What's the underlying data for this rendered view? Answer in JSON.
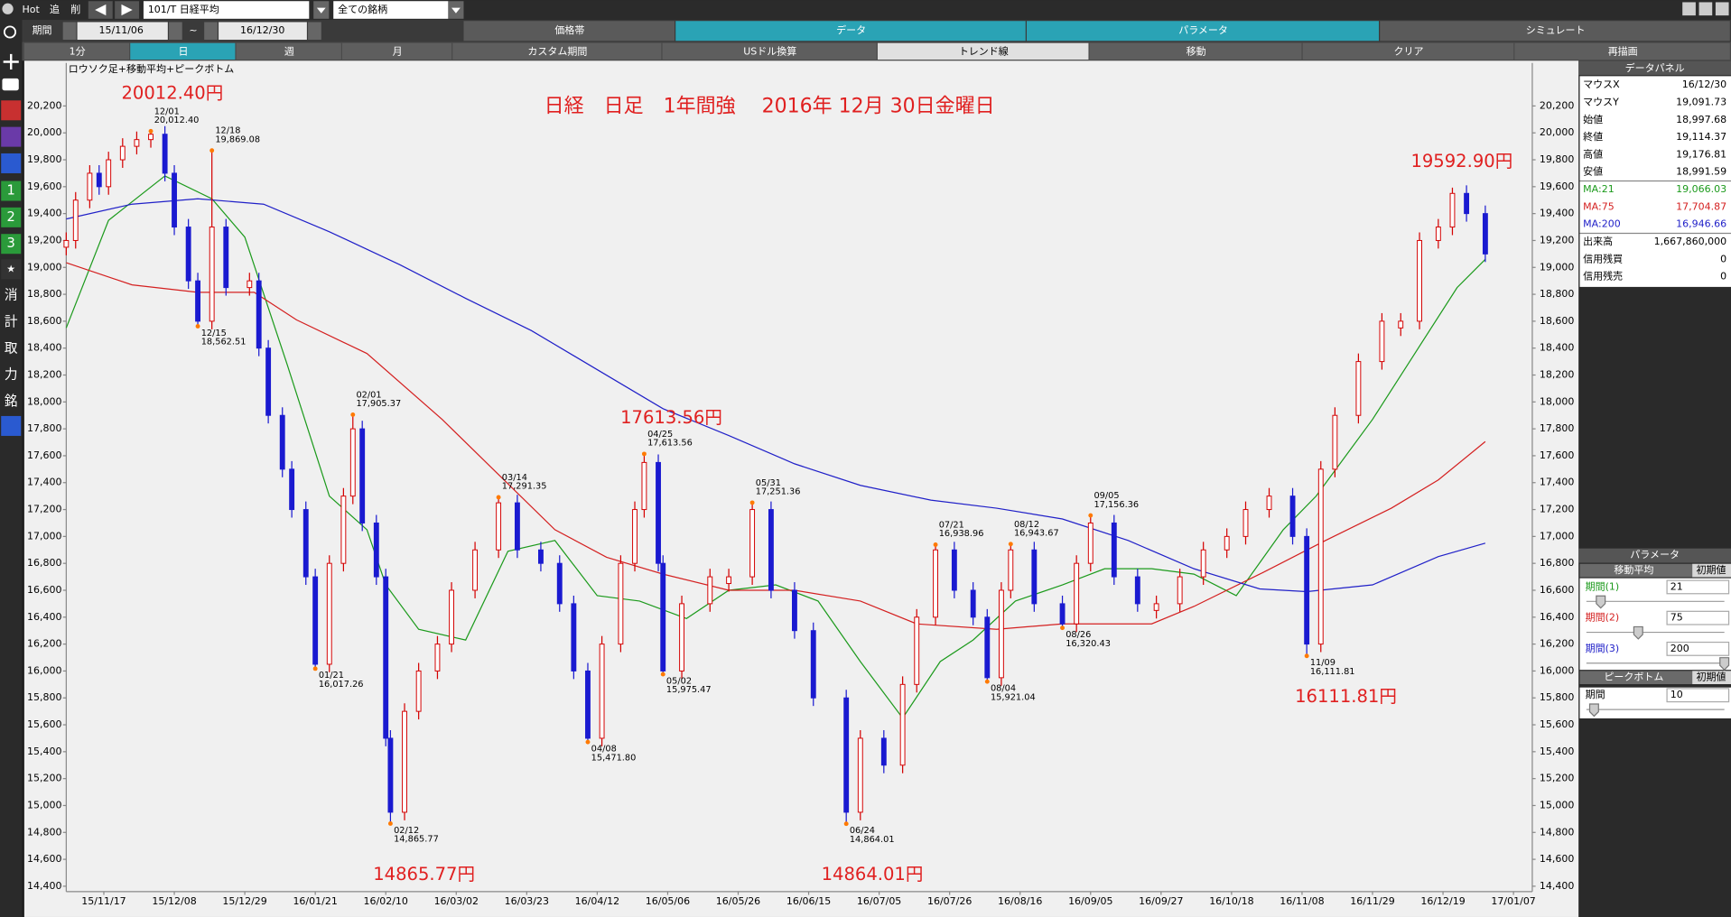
{
  "toolbar": {
    "hot": "Hot",
    "add": "追",
    "del": "削",
    "symbol": "101/T 日経平均",
    "universe": "全ての銘柄",
    "period_label": "期間",
    "from": "15/11/06",
    "tilde": "~",
    "to": "16/12/30"
  },
  "tabs": [
    "価格帯",
    "データ",
    "パラメータ",
    "シミュレート"
  ],
  "buttons": [
    "1分",
    "日",
    "週",
    "月",
    "カスタム期間",
    "USドル換算",
    "トレンド線",
    "移動",
    "クリア",
    "再描画"
  ],
  "sidebar": [
    "1",
    "2",
    "3",
    "消",
    "計",
    "取",
    "力",
    "銘"
  ],
  "chart_data": {
    "type": "candlestick",
    "title": "日経　日足　1年間強　 2016年 12月  30日金曜日",
    "subtitle": "ロウソク足+移動平均+ピークボトム",
    "up_color": "#d40000",
    "down_color": "#1a1ad0",
    "grid": false,
    "xlim": [
      0,
      312
    ],
    "xticks": [
      {
        "value": 8,
        "label": "15/11/17"
      },
      {
        "value": 23,
        "label": "15/12/08"
      },
      {
        "value": 38,
        "label": "15/12/29"
      },
      {
        "value": 53,
        "label": "16/01/21"
      },
      {
        "value": 68,
        "label": "16/02/10"
      },
      {
        "value": 83,
        "label": "16/03/02"
      },
      {
        "value": 98,
        "label": "16/03/23"
      },
      {
        "value": 113,
        "label": "16/04/12"
      },
      {
        "value": 128,
        "label": "16/05/06"
      },
      {
        "value": 143,
        "label": "16/05/26"
      },
      {
        "value": 158,
        "label": "16/06/15"
      },
      {
        "value": 173,
        "label": "16/07/05"
      },
      {
        "value": 188,
        "label": "16/07/26"
      },
      {
        "value": 203,
        "label": "16/08/16"
      },
      {
        "value": 218,
        "label": "16/09/05"
      },
      {
        "value": 233,
        "label": "16/09/27"
      },
      {
        "value": 248,
        "label": "16/10/18"
      },
      {
        "value": 263,
        "label": "16/11/08"
      },
      {
        "value": 278,
        "label": "16/11/29"
      },
      {
        "value": 293,
        "label": "16/12/19"
      },
      {
        "value": 308,
        "label": "17/01/07"
      }
    ],
    "ylim": [
      14360,
      20520
    ],
    "yticks": [
      {
        "value": 14400,
        "label": "14,400"
      },
      {
        "value": 14600,
        "label": "14,600"
      },
      {
        "value": 14800,
        "label": "14,800"
      },
      {
        "value": 15000,
        "label": "15,000"
      },
      {
        "value": 15200,
        "label": "15,200"
      },
      {
        "value": 15400,
        "label": "15,400"
      },
      {
        "value": 15600,
        "label": "15,600"
      },
      {
        "value": 15800,
        "label": "15,800"
      },
      {
        "value": 16000,
        "label": "16,000"
      },
      {
        "value": 16200,
        "label": "16,200"
      },
      {
        "value": 16400,
        "label": "16,400"
      },
      {
        "value": 16600,
        "label": "16,600"
      },
      {
        "value": 16800,
        "label": "16,800"
      },
      {
        "value": 17000,
        "label": "17,000"
      },
      {
        "value": 17200,
        "label": "17,200"
      },
      {
        "value": 17400,
        "label": "17,400"
      },
      {
        "value": 17600,
        "label": "17,600"
      },
      {
        "value": 17800,
        "label": "17,800"
      },
      {
        "value": 18000,
        "label": "18,000"
      },
      {
        "value": 18200,
        "label": "18,200"
      },
      {
        "value": 18400,
        "label": "18,400"
      },
      {
        "value": 18600,
        "label": "18,600"
      },
      {
        "value": 18800,
        "label": "18,800"
      },
      {
        "value": 19000,
        "label": "19,000"
      },
      {
        "value": 19200,
        "label": "19,200"
      },
      {
        "value": 19400,
        "label": "19,400"
      },
      {
        "value": 19600,
        "label": "19,600"
      },
      {
        "value": 19800,
        "label": "19,800"
      },
      {
        "value": 20000,
        "label": "20,000"
      },
      {
        "value": 20200,
        "label": "20,200"
      }
    ],
    "x": [
      0,
      2,
      5,
      7,
      9,
      12,
      15,
      18,
      21,
      23,
      26,
      28,
      31,
      34,
      39,
      41,
      43,
      46,
      48,
      51,
      53,
      56,
      59,
      61,
      63,
      66,
      68,
      69,
      72,
      75,
      79,
      82,
      87,
      92,
      96,
      101,
      105,
      108,
      111,
      114,
      118,
      121,
      123,
      126,
      127,
      131,
      137,
      141,
      146,
      150,
      155,
      159,
      166,
      169,
      174,
      178,
      181,
      185,
      189,
      193,
      196,
      199,
      201,
      206,
      212,
      215,
      218,
      223,
      228,
      232,
      237,
      242,
      247,
      251,
      256,
      261,
      264,
      267,
      270,
      275,
      280,
      284,
      288,
      292,
      295,
      298,
      302
    ],
    "ohlc": [
      [
        19150,
        19260,
        19090,
        19200
      ],
      [
        19200,
        19560,
        19140,
        19500
      ],
      [
        19500,
        19760,
        19440,
        19700
      ],
      [
        19700,
        19760,
        19540,
        19600
      ],
      [
        19600,
        19860,
        19540,
        19800
      ],
      [
        19800,
        19960,
        19740,
        19900
      ],
      [
        19900,
        20010,
        19840,
        19950
      ],
      [
        19950,
        20012.4,
        19890,
        19990
      ],
      [
        19990,
        20050,
        19640,
        19700
      ],
      [
        19700,
        19760,
        19240,
        19300
      ],
      [
        19300,
        19360,
        18840,
        18900
      ],
      [
        18900,
        18960,
        18562.51,
        18600
      ],
      [
        18600,
        19869.08,
        18540,
        19300
      ],
      [
        19300,
        19360,
        18790,
        18850
      ],
      [
        18850,
        18960,
        18790,
        18900
      ],
      [
        18900,
        18960,
        18340,
        18400
      ],
      [
        18400,
        18460,
        17840,
        17900
      ],
      [
        17900,
        17960,
        17440,
        17500
      ],
      [
        17500,
        17560,
        17140,
        17200
      ],
      [
        17200,
        17260,
        16640,
        16700
      ],
      [
        16700,
        16760,
        16017.26,
        16050
      ],
      [
        16050,
        16860,
        15990,
        16800
      ],
      [
        16800,
        17360,
        16740,
        17300
      ],
      [
        17300,
        17905.37,
        17240,
        17800
      ],
      [
        17800,
        17860,
        17040,
        17100
      ],
      [
        17100,
        17160,
        16640,
        16700
      ],
      [
        16700,
        16760,
        15440,
        15500
      ],
      [
        15500,
        15560,
        14865.77,
        14950
      ],
      [
        14950,
        15760,
        14890,
        15700
      ],
      [
        15700,
        16060,
        15640,
        16000
      ],
      [
        16000,
        16260,
        15940,
        16200
      ],
      [
        16200,
        16660,
        16140,
        16600
      ],
      [
        16600,
        16960,
        16540,
        16900
      ],
      [
        16900,
        17291.35,
        16840,
        17250
      ],
      [
        17250,
        17310,
        16840,
        16900
      ],
      [
        16900,
        16960,
        16740,
        16800
      ],
      [
        16800,
        16860,
        16440,
        16500
      ],
      [
        16500,
        16560,
        15940,
        16000
      ],
      [
        16000,
        16060,
        15471.8,
        15500
      ],
      [
        15500,
        16260,
        15440,
        16200
      ],
      [
        16200,
        16860,
        16140,
        16800
      ],
      [
        16800,
        17260,
        16740,
        17200
      ],
      [
        17200,
        17613.56,
        17140,
        17550
      ],
      [
        17550,
        17610,
        16740,
        16800
      ],
      [
        16800,
        16860,
        15975.47,
        16000
      ],
      [
        16000,
        16560,
        15940,
        16500
      ],
      [
        16500,
        16760,
        16440,
        16700
      ],
      [
        16650,
        16760,
        16590,
        16700
      ],
      [
        16700,
        17251.36,
        16640,
        17200
      ],
      [
        17200,
        17260,
        16540,
        16600
      ],
      [
        16600,
        16660,
        16240,
        16300
      ],
      [
        16300,
        16360,
        15740,
        15800
      ],
      [
        15800,
        15860,
        14864.01,
        14950
      ],
      [
        14950,
        15560,
        14890,
        15500
      ],
      [
        15500,
        15560,
        15240,
        15300
      ],
      [
        15300,
        15960,
        15240,
        15900
      ],
      [
        15900,
        16460,
        15840,
        16400
      ],
      [
        16400,
        16938.96,
        16340,
        16900
      ],
      [
        16900,
        16960,
        16540,
        16600
      ],
      [
        16600,
        16660,
        16340,
        16400
      ],
      [
        16400,
        16460,
        15921.04,
        15950
      ],
      [
        15950,
        16660,
        15890,
        16600
      ],
      [
        16600,
        16943.67,
        16540,
        16900
      ],
      [
        16900,
        16960,
        16440,
        16500
      ],
      [
        16500,
        16560,
        16320.43,
        16350
      ],
      [
        16350,
        16860,
        16290,
        16800
      ],
      [
        16800,
        17156.36,
        16740,
        17100
      ],
      [
        17100,
        17160,
        16640,
        16700
      ],
      [
        16700,
        16760,
        16440,
        16500
      ],
      [
        16450,
        16560,
        16390,
        16500
      ],
      [
        16500,
        16760,
        16440,
        16700
      ],
      [
        16700,
        16960,
        16640,
        16900
      ],
      [
        16900,
        17060,
        16840,
        17000
      ],
      [
        17000,
        17260,
        16940,
        17200
      ],
      [
        17200,
        17360,
        17140,
        17300
      ],
      [
        17300,
        17360,
        16940,
        17000
      ],
      [
        17000,
        17060,
        16111.81,
        16200
      ],
      [
        16200,
        17560,
        16140,
        17500
      ],
      [
        17500,
        17960,
        17440,
        17900
      ],
      [
        17900,
        18360,
        17840,
        18300
      ],
      [
        18300,
        18660,
        18240,
        18600
      ],
      [
        18550,
        18660,
        18490,
        18600
      ],
      [
        18600,
        19260,
        18540,
        19200
      ],
      [
        19200,
        19360,
        19140,
        19300
      ],
      [
        19300,
        19592.9,
        19240,
        19550
      ],
      [
        19550,
        19610,
        19340,
        19400
      ],
      [
        19400,
        19460,
        19040,
        19100
      ]
    ],
    "series": [
      {
        "name": "MA:21",
        "color": "#1c9a1c",
        "x": [
          0,
          9,
          21,
          31,
          38,
          47,
          56,
          64,
          68,
          75,
          85,
          94,
          104,
          113,
          122,
          132,
          141,
          151,
          160,
          169,
          178,
          186,
          193,
          202,
          212,
          221,
          231,
          240,
          249,
          259,
          266,
          278,
          287,
          296,
          302
        ],
        "values": [
          18550,
          19350,
          19680,
          19510,
          19225,
          18280,
          17300,
          17050,
          16640,
          16310,
          16230,
          16890,
          16970,
          16560,
          16520,
          16390,
          16600,
          16640,
          16520,
          16070,
          15650,
          16070,
          16230,
          16520,
          16640,
          16760,
          16760,
          16720,
          16560,
          17050,
          17300,
          17870,
          18360,
          18850,
          19060
        ]
      },
      {
        "name": "MA:75",
        "color": "#d42020",
        "x": [
          0,
          14,
          28,
          40,
          49,
          64,
          80,
          92,
          104,
          115,
          127,
          141,
          155,
          169,
          181,
          198,
          212,
          231,
          240,
          254,
          268,
          282,
          292,
          302
        ],
        "values": [
          19035,
          18870,
          18815,
          18815,
          18610,
          18360,
          17870,
          17460,
          17050,
          16845,
          16720,
          16600,
          16600,
          16520,
          16350,
          16310,
          16350,
          16350,
          16480,
          16720,
          16970,
          17210,
          17420,
          17705
        ]
      },
      {
        "name": "MA:200",
        "color": "#2020c8",
        "x": [
          0,
          14,
          28,
          42,
          56,
          71,
          85,
          99,
          113,
          127,
          141,
          155,
          169,
          184,
          198,
          212,
          226,
          240,
          254,
          264,
          278,
          292,
          302
        ],
        "values": [
          19360,
          19470,
          19510,
          19470,
          19265,
          19020,
          18770,
          18530,
          18240,
          17950,
          17750,
          17540,
          17380,
          17270,
          17210,
          17130,
          16970,
          16760,
          16610,
          16590,
          16640,
          16850,
          16950
        ]
      }
    ],
    "peaks": [
      {
        "x": 18,
        "date": "12/01",
        "value": 20012.4,
        "label": "20,012.40"
      },
      {
        "x": 28,
        "date": "12/15",
        "value": 18562.51,
        "label": "18,562.51"
      },
      {
        "x": 31,
        "date": "12/18",
        "value": 19869.08,
        "label": "19,869.08"
      },
      {
        "x": 53,
        "date": "01/21",
        "value": 16017.26,
        "label": "16,017.26"
      },
      {
        "x": 61,
        "date": "02/01",
        "value": 17905.37,
        "label": "17,905.37"
      },
      {
        "x": 69,
        "date": "02/12",
        "value": 14865.77,
        "label": "14,865.77"
      },
      {
        "x": 92,
        "date": "03/14",
        "value": 17291.35,
        "label": "17,291.35"
      },
      {
        "x": 111,
        "date": "04/08",
        "value": 15471.8,
        "label": "15,471.80"
      },
      {
        "x": 123,
        "date": "04/25",
        "value": 17613.56,
        "label": "17,613.56"
      },
      {
        "x": 127,
        "date": "05/02",
        "value": 15975.47,
        "label": "15,975.47"
      },
      {
        "x": 146,
        "date": "05/31",
        "value": 17251.36,
        "label": "17,251.36"
      },
      {
        "x": 166,
        "date": "06/24",
        "value": 14864.01,
        "label": "14,864.01"
      },
      {
        "x": 185,
        "date": "07/21",
        "value": 16938.96,
        "label": "16,938.96"
      },
      {
        "x": 196,
        "date": "08/04",
        "value": 15921.04,
        "label": "15,921.04"
      },
      {
        "x": 201,
        "date": "08/12",
        "value": 16943.67,
        "label": "16,943.67"
      },
      {
        "x": 212,
        "date": "08/26",
        "value": 16320.43,
        "label": "16,320.43"
      },
      {
        "x": 218,
        "date": "09/05",
        "value": 17156.36,
        "label": "17,156.36"
      },
      {
        "x": 264,
        "date": "11/09",
        "value": 16111.81,
        "label": "16,111.81"
      }
    ],
    "annotations": [
      "20012.40円",
      "19592.90円",
      "17613.56円",
      "14865.77円",
      "14864.01円",
      "16111.81円"
    ]
  },
  "data_panel": {
    "title": "データパネル",
    "rows": [
      {
        "label": "マウスX",
        "value": "16/12/30"
      },
      {
        "label": "マウスY",
        "value": "19,091.73"
      },
      {
        "label": "始値",
        "value": "18,997.68"
      },
      {
        "label": "終値",
        "value": "19,114.37"
      },
      {
        "label": "高値",
        "value": "19,176.81"
      },
      {
        "label": "安値",
        "value": "18,991.59"
      }
    ],
    "ma_values": [
      "19,066.03",
      "17,704.87",
      "16,946.66"
    ],
    "rows2": [
      {
        "label": "出来高",
        "value": "1,667,860,000"
      },
      {
        "label": "信用残買",
        "value": "0"
      },
      {
        "label": "信用残売",
        "value": "0"
      }
    ]
  },
  "parameters": {
    "title": "パラメータ",
    "ma_title": "移動平均",
    "reset": "初期値",
    "periods": [
      {
        "label": "期間(1)",
        "value": 21
      },
      {
        "label": "期間(2)",
        "value": 75
      },
      {
        "label": "期間(3)",
        "value": 200
      }
    ],
    "peak_title": "ピークボトム",
    "peak_reset": "初期値",
    "peak_period": {
      "label": "期間",
      "value": 10
    }
  }
}
